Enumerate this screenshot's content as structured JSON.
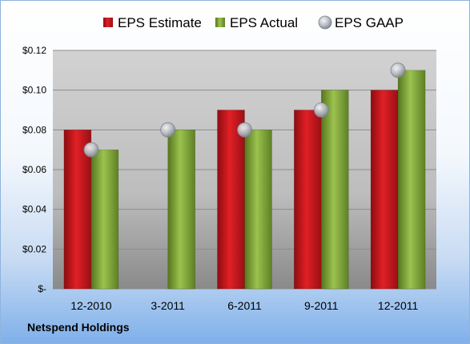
{
  "company": "Netspend Holdings",
  "chart_data": {
    "type": "bar",
    "categories": [
      "12-2010",
      "3-2011",
      "6-2011",
      "9-2011",
      "12-2011"
    ],
    "series": [
      {
        "name": "EPS Estimate",
        "type": "bar",
        "color": "#c8161c",
        "values": [
          0.08,
          null,
          0.09,
          0.09,
          0.1
        ]
      },
      {
        "name": "EPS Actual",
        "type": "bar",
        "color": "#7ea33a",
        "values": [
          0.07,
          0.08,
          0.08,
          0.1,
          0.11
        ]
      },
      {
        "name": "EPS GAAP",
        "type": "scatter",
        "color": "#b8bcc4",
        "values": [
          0.07,
          0.08,
          0.08,
          0.09,
          0.11
        ]
      }
    ],
    "y_ticks": [
      "$-",
      "$0.02",
      "$0.04",
      "$0.06",
      "$0.08",
      "$0.10",
      "$0.12"
    ],
    "ylim": [
      0,
      0.12
    ],
    "grid": true,
    "legend": "top",
    "title": "",
    "xlabel": "",
    "ylabel": ""
  }
}
